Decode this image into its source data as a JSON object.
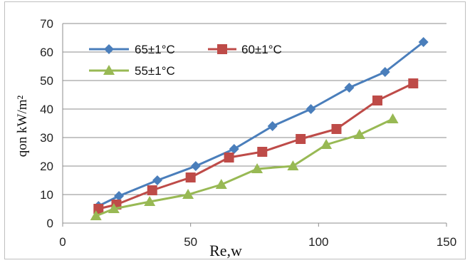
{
  "chart_data": {
    "type": "line",
    "title": "",
    "xlabel": "Re,w",
    "ylabel": "qon kW/m²",
    "xlim": [
      0,
      150
    ],
    "ylim": [
      0,
      70
    ],
    "xticks": [
      0,
      50,
      100,
      150
    ],
    "yticks": [
      0,
      10,
      20,
      30,
      40,
      50,
      60,
      70
    ],
    "grid": "horizontal",
    "legend_position": "top-left",
    "series": [
      {
        "name": "65±1°C",
        "color": "#4a7ebb",
        "marker": "diamond",
        "x": [
          14,
          22,
          37,
          52,
          67,
          82,
          97,
          112,
          126,
          141
        ],
        "y": [
          6,
          9.5,
          15,
          20,
          26,
          34,
          40,
          47.5,
          53,
          63.5
        ]
      },
      {
        "name": "60±1°C",
        "color": "#be4b48",
        "marker": "square",
        "x": [
          14,
          21,
          35,
          50,
          65,
          78,
          93,
          107,
          123,
          137
        ],
        "y": [
          5,
          6.5,
          11.5,
          16,
          23,
          25,
          29.5,
          33,
          43,
          49
        ]
      },
      {
        "name": "55±1°C",
        "color": "#98b954",
        "marker": "triangle",
        "x": [
          13,
          20,
          34,
          49,
          62,
          76,
          90,
          103,
          116,
          129
        ],
        "y": [
          2.5,
          5,
          7.5,
          10,
          13.5,
          19,
          20,
          27.5,
          31,
          36.5
        ]
      }
    ]
  }
}
